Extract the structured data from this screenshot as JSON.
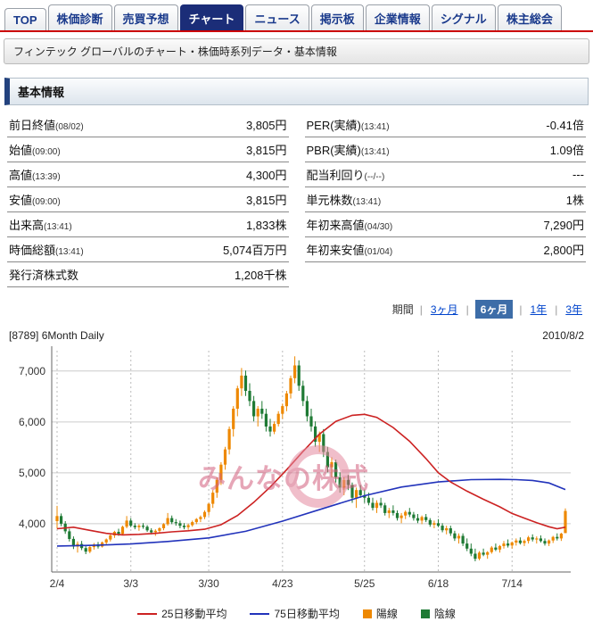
{
  "tabs": [
    {
      "label": "TOP",
      "active": false
    },
    {
      "label": "株価診断",
      "active": false
    },
    {
      "label": "売買予想",
      "active": false
    },
    {
      "label": "チャート",
      "active": true
    },
    {
      "label": "ニュース",
      "active": false
    },
    {
      "label": "掲示板",
      "active": false
    },
    {
      "label": "企業情報",
      "active": false
    },
    {
      "label": "シグナル",
      "active": false
    },
    {
      "label": "株主総会",
      "active": false
    }
  ],
  "breadcrumb": "フィンテック グローバルのチャート・株価時系列データ・基本情報",
  "section_title": "基本情報",
  "info_table": {
    "left": [
      {
        "label": "前日終値",
        "sub": "(08/02)",
        "value": "3,805円"
      },
      {
        "label": "始値",
        "sub": "(09:00)",
        "value": "3,815円"
      },
      {
        "label": "高値",
        "sub": "(13:39)",
        "value": "4,300円"
      },
      {
        "label": "安値",
        "sub": "(09:00)",
        "value": "3,815円"
      },
      {
        "label": "出来高",
        "sub": "(13:41)",
        "value": "1,833株"
      },
      {
        "label": "時価総額",
        "sub": "(13:41)",
        "value": "5,074百万円"
      },
      {
        "label": "発行済株式数",
        "sub": "",
        "value": "1,208千株"
      }
    ],
    "right": [
      {
        "label": "PER(実績)",
        "sub": "(13:41)",
        "value": "-0.41倍"
      },
      {
        "label": "PBR(実績)",
        "sub": "(13:41)",
        "value": "1.09倍"
      },
      {
        "label": "配当利回り",
        "sub": "(--/--)",
        "value": "---"
      },
      {
        "label": "単元株数",
        "sub": "(13:41)",
        "value": "1株"
      },
      {
        "label": "年初来高値",
        "sub": "(04/30)",
        "value": "7,290円"
      },
      {
        "label": "年初来安値",
        "sub": "(01/04)",
        "value": "2,800円"
      }
    ]
  },
  "period": {
    "label": "期間",
    "options": [
      {
        "label": "3ヶ月",
        "selected": false
      },
      {
        "label": "6ヶ月",
        "selected": true
      },
      {
        "label": "1年",
        "selected": false
      },
      {
        "label": "3年",
        "selected": false
      }
    ]
  },
  "chart_header": {
    "left": "[8789] 6Month Daily",
    "right": "2010/8/2"
  },
  "watermark": "みんなの株式",
  "legend": [
    {
      "label": "25日移動平均",
      "swatch": "line",
      "color": "#cc2222"
    },
    {
      "label": "75日移動平均",
      "swatch": "line",
      "color": "#2233bb"
    },
    {
      "label": "陽線",
      "swatch": "box",
      "color": "#ee8800"
    },
    {
      "label": "陰線",
      "swatch": "box",
      "color": "#1e7a34"
    }
  ],
  "chart_data": {
    "type": "candlestick",
    "title": "[8789] 6Month Daily",
    "date": "2010/8/2",
    "xlabel": "",
    "ylabel": "",
    "ylim": [
      3050,
      7400
    ],
    "grid": true,
    "legend_position": "bottom",
    "y_ticks": [
      {
        "value": 4000,
        "label": "4,000"
      },
      {
        "value": 5000,
        "label": "5,000"
      },
      {
        "value": 6000,
        "label": "6,000"
      },
      {
        "value": 7000,
        "label": "7,000"
      }
    ],
    "x_ticks": [
      {
        "label": "2/4",
        "index": 0
      },
      {
        "label": "3/3",
        "index": 18
      },
      {
        "label": "3/30",
        "index": 37
      },
      {
        "label": "4/23",
        "index": 55
      },
      {
        "label": "5/25",
        "index": 75
      },
      {
        "label": "6/18",
        "index": 93
      },
      {
        "label": "7/14",
        "index": 111
      }
    ],
    "colors": {
      "ma25": "#cc2222",
      "ma75": "#2233bb",
      "bull": "#ee8800",
      "bear": "#1e7a34",
      "grid": "#cccccc",
      "axis": "#666666"
    },
    "series_labels": {
      "ma25": "25日移動平均",
      "ma75": "75日移動平均",
      "bull": "陽線",
      "bear": "陰線"
    },
    "candles": [
      [
        4050,
        4350,
        3900,
        4150
      ],
      [
        4150,
        4200,
        3950,
        4000
      ],
      [
        4000,
        4050,
        3800,
        3850
      ],
      [
        3850,
        3900,
        3650,
        3700
      ],
      [
        3700,
        3750,
        3500,
        3550
      ],
      [
        3550,
        3650,
        3430,
        3600
      ],
      [
        3600,
        3660,
        3480,
        3520
      ],
      [
        3520,
        3570,
        3400,
        3450
      ],
      [
        3450,
        3560,
        3420,
        3540
      ],
      [
        3540,
        3620,
        3490,
        3590
      ],
      [
        3590,
        3640,
        3510,
        3550
      ],
      [
        3550,
        3650,
        3530,
        3630
      ],
      [
        3630,
        3710,
        3590,
        3690
      ],
      [
        3690,
        3790,
        3650,
        3770
      ],
      [
        3770,
        3860,
        3720,
        3840
      ],
      [
        3840,
        3900,
        3760,
        3800
      ],
      [
        3800,
        3960,
        3780,
        3940
      ],
      [
        3940,
        4150,
        3910,
        4060
      ],
      [
        4060,
        4110,
        3930,
        3960
      ],
      [
        3960,
        4010,
        3890,
        3930
      ],
      [
        3930,
        3990,
        3860,
        3960
      ],
      [
        3960,
        4010,
        3900,
        3940
      ],
      [
        3940,
        3970,
        3840,
        3870
      ],
      [
        3870,
        3910,
        3790,
        3830
      ],
      [
        3830,
        3890,
        3760,
        3860
      ],
      [
        3860,
        3930,
        3810,
        3910
      ],
      [
        3910,
        4010,
        3870,
        3990
      ],
      [
        3990,
        4210,
        3960,
        4110
      ],
      [
        4110,
        4160,
        3990,
        4030
      ],
      [
        4030,
        4090,
        3960,
        4010
      ],
      [
        4010,
        4060,
        3910,
        3960
      ],
      [
        3960,
        4010,
        3890,
        3930
      ],
      [
        3930,
        4000,
        3880,
        3970
      ],
      [
        3970,
        4060,
        3940,
        4030
      ],
      [
        4030,
        4110,
        3990,
        4090
      ],
      [
        4090,
        4160,
        4030,
        4130
      ],
      [
        4130,
        4260,
        4090,
        4230
      ],
      [
        4230,
        4410,
        4160,
        4390
      ],
      [
        4390,
        4660,
        4310,
        4610
      ],
      [
        4610,
        4910,
        4510,
        4860
      ],
      [
        4860,
        5210,
        4760,
        5160
      ],
      [
        5160,
        5510,
        5060,
        5460
      ],
      [
        5460,
        5910,
        5360,
        5860
      ],
      [
        5860,
        6310,
        5710,
        6260
      ],
      [
        6260,
        6710,
        6110,
        6660
      ],
      [
        6660,
        7060,
        6510,
        6910
      ],
      [
        6910,
        7010,
        6510,
        6610
      ],
      [
        6610,
        6760,
        6310,
        6410
      ],
      [
        6410,
        6510,
        6010,
        6110
      ],
      [
        6110,
        6310,
        5910,
        6260
      ],
      [
        6260,
        6410,
        6060,
        6160
      ],
      [
        6160,
        6260,
        5810,
        5910
      ],
      [
        5910,
        6060,
        5710,
        5810
      ],
      [
        5810,
        6010,
        5760,
        5960
      ],
      [
        5960,
        6210,
        5910,
        6160
      ],
      [
        6160,
        6360,
        6060,
        6310
      ],
      [
        6310,
        6610,
        6210,
        6560
      ],
      [
        6560,
        6910,
        6460,
        6860
      ],
      [
        6860,
        7290,
        6760,
        7110
      ],
      [
        7110,
        7210,
        6610,
        6710
      ],
      [
        6710,
        6810,
        6310,
        6410
      ],
      [
        6410,
        6510,
        6010,
        6110
      ],
      [
        6110,
        6260,
        5810,
        5910
      ],
      [
        5910,
        6010,
        5510,
        5610
      ],
      [
        5610,
        5810,
        5410,
        5760
      ],
      [
        5760,
        5860,
        5310,
        5410
      ],
      [
        5410,
        5510,
        5010,
        5110
      ],
      [
        5110,
        5310,
        4910,
        5210
      ],
      [
        5210,
        5260,
        4810,
        4910
      ],
      [
        4910,
        5010,
        4610,
        4710
      ],
      [
        4710,
        4910,
        4560,
        4860
      ],
      [
        4860,
        4960,
        4660,
        4760
      ],
      [
        4760,
        4810,
        4410,
        4510
      ],
      [
        4510,
        4710,
        4310,
        4660
      ],
      [
        4660,
        4760,
        4510,
        4560
      ],
      [
        4560,
        4660,
        4410,
        4510
      ],
      [
        4510,
        4610,
        4360,
        4410
      ],
      [
        4410,
        4510,
        4260,
        4310
      ],
      [
        4310,
        4460,
        4210,
        4410
      ],
      [
        4410,
        4510,
        4310,
        4360
      ],
      [
        4360,
        4410,
        4160,
        4210
      ],
      [
        4210,
        4310,
        4110,
        4260
      ],
      [
        4260,
        4360,
        4160,
        4210
      ],
      [
        4210,
        4260,
        4060,
        4110
      ],
      [
        4110,
        4210,
        4010,
        4160
      ],
      [
        4160,
        4260,
        4090,
        4230
      ],
      [
        4230,
        4310,
        4130,
        4180
      ],
      [
        4180,
        4230,
        4060,
        4110
      ],
      [
        4110,
        4190,
        4010,
        4060
      ],
      [
        4060,
        4160,
        3990,
        4130
      ],
      [
        4130,
        4190,
        4030,
        4070
      ],
      [
        4070,
        4110,
        3940,
        3980
      ],
      [
        3980,
        4060,
        3910,
        4010
      ],
      [
        4010,
        4090,
        3930,
        3960
      ],
      [
        3960,
        4010,
        3830,
        3870
      ],
      [
        3870,
        3960,
        3790,
        3910
      ],
      [
        3910,
        3960,
        3760,
        3810
      ],
      [
        3810,
        3860,
        3660,
        3710
      ],
      [
        3710,
        3810,
        3610,
        3760
      ],
      [
        3760,
        3810,
        3560,
        3610
      ],
      [
        3610,
        3710,
        3460,
        3510
      ],
      [
        3510,
        3610,
        3360,
        3410
      ],
      [
        3410,
        3510,
        3260,
        3310
      ],
      [
        3310,
        3460,
        3280,
        3430
      ],
      [
        3430,
        3510,
        3360,
        3390
      ],
      [
        3390,
        3460,
        3310,
        3440
      ],
      [
        3440,
        3560,
        3410,
        3530
      ],
      [
        3530,
        3610,
        3460,
        3490
      ],
      [
        3490,
        3580,
        3430,
        3560
      ],
      [
        3560,
        3660,
        3510,
        3610
      ],
      [
        3610,
        3690,
        3530,
        3570
      ],
      [
        3570,
        3650,
        3510,
        3630
      ],
      [
        3630,
        3710,
        3570,
        3670
      ],
      [
        3670,
        3730,
        3590,
        3620
      ],
      [
        3620,
        3690,
        3560,
        3660
      ],
      [
        3660,
        3760,
        3610,
        3730
      ],
      [
        3730,
        3790,
        3650,
        3690
      ],
      [
        3690,
        3750,
        3610,
        3710
      ],
      [
        3710,
        3770,
        3630,
        3660
      ],
      [
        3660,
        3710,
        3570,
        3610
      ],
      [
        3610,
        3690,
        3560,
        3670
      ],
      [
        3670,
        3760,
        3620,
        3740
      ],
      [
        3740,
        3810,
        3670,
        3710
      ],
      [
        3710,
        3820,
        3660,
        3805
      ],
      [
        3815,
        4300,
        3815,
        4250
      ]
    ],
    "ma25": [
      [
        0,
        3900
      ],
      [
        4,
        3930
      ],
      [
        8,
        3870
      ],
      [
        12,
        3810
      ],
      [
        16,
        3780
      ],
      [
        20,
        3790
      ],
      [
        24,
        3810
      ],
      [
        28,
        3840
      ],
      [
        32,
        3860
      ],
      [
        36,
        3890
      ],
      [
        40,
        3980
      ],
      [
        44,
        4160
      ],
      [
        48,
        4420
      ],
      [
        52,
        4720
      ],
      [
        56,
        5060
      ],
      [
        60,
        5420
      ],
      [
        64,
        5760
      ],
      [
        68,
        6010
      ],
      [
        72,
        6130
      ],
      [
        75,
        6150
      ],
      [
        78,
        6090
      ],
      [
        82,
        5890
      ],
      [
        86,
        5620
      ],
      [
        90,
        5280
      ],
      [
        93,
        5000
      ],
      [
        96,
        4820
      ],
      [
        100,
        4640
      ],
      [
        104,
        4480
      ],
      [
        108,
        4330
      ],
      [
        111,
        4200
      ],
      [
        114,
        4110
      ],
      [
        117,
        4020
      ],
      [
        120,
        3940
      ],
      [
        122,
        3900
      ],
      [
        124,
        3930
      ]
    ],
    "ma75": [
      [
        0,
        3560
      ],
      [
        9,
        3575
      ],
      [
        18,
        3600
      ],
      [
        27,
        3650
      ],
      [
        37,
        3720
      ],
      [
        46,
        3850
      ],
      [
        55,
        4050
      ],
      [
        65,
        4300
      ],
      [
        75,
        4550
      ],
      [
        84,
        4720
      ],
      [
        93,
        4820
      ],
      [
        101,
        4865
      ],
      [
        108,
        4870
      ],
      [
        112,
        4865
      ],
      [
        116,
        4850
      ],
      [
        120,
        4800
      ],
      [
        124,
        4670
      ]
    ]
  }
}
